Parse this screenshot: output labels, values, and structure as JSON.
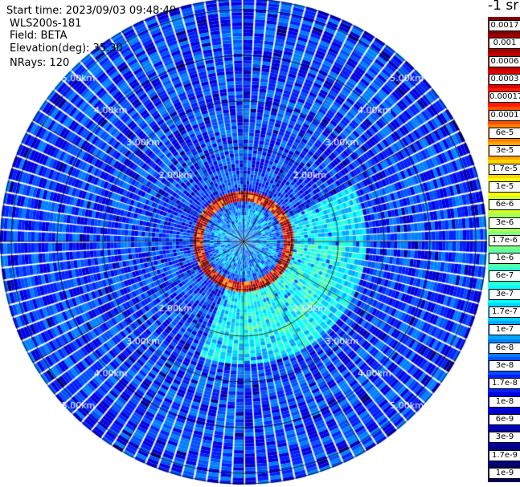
{
  "header": {
    "start_time": "Start time: 2023/09/03 09:48:49",
    "instrument": "WLS200s-181",
    "field": "Field: BETA",
    "elevation": "Elevation(deg): 35.30",
    "nrays": "NRays: 120"
  },
  "colorbar": {
    "unit_label": "-1 sr",
    "labels": [
      "0.0017",
      "0.001",
      "0.0006",
      "0.0003",
      "0.00017",
      "0.0001",
      "6e-5",
      "3e-5",
      "1.7e-5",
      "1e-5",
      "6e-6",
      "3e-6",
      "1.7e-6",
      "1e-6",
      "6e-7",
      "3e-7",
      "1.7e-7",
      "1e-7",
      "6e-8",
      "3e-8",
      "1.7e-8",
      "1e-8",
      "6e-9",
      "3e-9",
      "1.7e-9",
      "1e-9"
    ],
    "colors": [
      "#7f0000",
      "#a00000",
      "#c00000",
      "#e00000",
      "#ff1a00",
      "#ff4d00",
      "#ff8000",
      "#ffa600",
      "#ffd200",
      "#ffff00",
      "#d2ff2d",
      "#a6ff59",
      "#80ff80",
      "#59ffa6",
      "#2dffd2",
      "#00ffff",
      "#00d2ff",
      "#00a6ff",
      "#0080ff",
      "#0050ff",
      "#0020ff",
      "#0000e0",
      "#0000c0",
      "#0000a0",
      "#000080",
      "#00005a"
    ]
  },
  "chart_data": {
    "type": "heatmap",
    "title": "",
    "projection": "polar PPI",
    "field": "BETA",
    "elevation_deg": 35.3,
    "n_rays": 120,
    "range_ring_labels": [
      "2.00km",
      "3.00km",
      "4.00km",
      "5.00km"
    ],
    "range_rings_km": [
      1,
      2,
      3,
      4,
      5,
      6
    ],
    "max_range_km": 6.0,
    "scale": "log",
    "range_scale": "logarithmic",
    "features": [
      {
        "name": "high backscatter ring",
        "range_km": 0.7,
        "value_approx": 0.0006
      },
      {
        "name": "near-field enhanced",
        "range_km_max": 1.3,
        "value_approx": 1e-06
      },
      {
        "name": "background",
        "value_approx": 3e-08
      }
    ]
  }
}
